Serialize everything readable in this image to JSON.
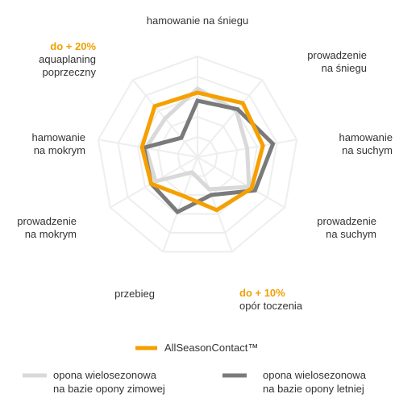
{
  "chart_data": {
    "type": "radar",
    "axes": [
      {
        "lines": [
          "hamowanie na śniegu"
        ],
        "highlight": ""
      },
      {
        "lines": [
          "prowadzenie",
          "na śniegu"
        ],
        "highlight": ""
      },
      {
        "lines": [
          "hamowanie",
          "na suchym"
        ],
        "highlight": ""
      },
      {
        "lines": [
          "prowadzenie",
          "na suchym"
        ],
        "highlight": ""
      },
      {
        "lines": [
          "opór toczenia"
        ],
        "highlight": "do + 10%"
      },
      {
        "lines": [
          "przebieg"
        ],
        "highlight": ""
      },
      {
        "lines": [
          "prowadzenie",
          "na mokrym"
        ],
        "highlight": ""
      },
      {
        "lines": [
          "hamowanie",
          "na mokrym"
        ],
        "highlight": ""
      },
      {
        "lines": [
          "aquaplaning",
          "poprzeczny"
        ],
        "highlight": "do + 20%"
      }
    ],
    "rings": 5,
    "max": 5,
    "series": [
      {
        "name": "opona wielosezonowa na bazie opony zimowej",
        "legend_lines": [
          "opona wielosezonowa",
          "na bazie opony zimowej"
        ],
        "color": "#d9d9d9",
        "values": [
          3.4,
          3.0,
          2.5,
          2.95,
          1.7,
          0.8,
          2.4,
          2.6,
          2.5
        ]
      },
      {
        "name": "opona wielosezonowa na bazie opony letniej",
        "legend_lines": [
          "opona wielosezonowa",
          "na bazie opony letniej"
        ],
        "color": "#7a7a7a",
        "values": [
          2.8,
          3.1,
          3.8,
          3.3,
          2.0,
          2.9,
          2.65,
          2.7,
          1.25
        ]
      },
      {
        "name": "AllSeasonContact™",
        "legend_lines": [
          "AllSeasonContact™"
        ],
        "color": "#f5a000",
        "values": [
          3.2,
          3.5,
          3.3,
          3.1,
          2.8,
          2.05,
          2.65,
          2.8,
          3.3
        ]
      }
    ]
  },
  "colors": {
    "grid": "#eeeeee",
    "highlight_text": "#f0a000"
  }
}
